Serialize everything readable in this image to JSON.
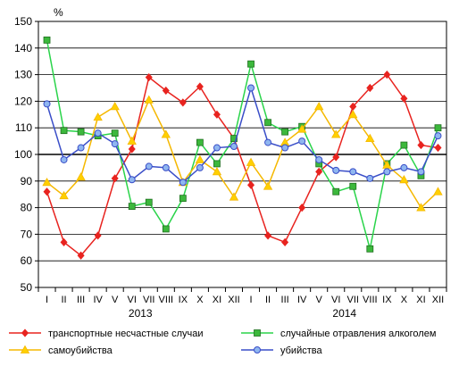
{
  "chart_data": {
    "type": "line",
    "unit_label": "%",
    "ylim": [
      50,
      150
    ],
    "yticks": [
      50,
      60,
      70,
      80,
      90,
      100,
      110,
      120,
      130,
      140,
      150
    ],
    "reference_line": 100,
    "grid": true,
    "categories": [
      "I",
      "II",
      "III",
      "IV",
      "V",
      "VI",
      "VII",
      "VIII",
      "IX",
      "X",
      "XI",
      "XII",
      "I",
      "II",
      "III",
      "IV",
      "V",
      "VI",
      "VII",
      "VIII",
      "IX",
      "X",
      "XI",
      "XII"
    ],
    "years": [
      {
        "label": "2013",
        "from": 0,
        "to": 11
      },
      {
        "label": "2014",
        "from": 12,
        "to": 23
      }
    ],
    "legend_position": "bottom",
    "series": [
      {
        "name": "транспортные несчастные случаи",
        "color": "#e8231f",
        "marker_fill": "#e8231f",
        "marker": "diamond",
        "values": [
          86,
          67,
          62,
          69.5,
          91,
          102,
          129,
          124,
          119.5,
          125.5,
          115,
          106,
          88.5,
          69.5,
          67,
          80,
          93.5,
          99,
          118,
          125,
          130,
          121,
          103.5,
          102.5
        ]
      },
      {
        "name": "случайные отравления алкоголем",
        "color": "#2ad44a",
        "marker_fill": "#3cb83c",
        "marker": "square",
        "values": [
          143,
          109,
          108.5,
          107,
          108,
          80.5,
          82,
          72,
          83.5,
          104.5,
          96.5,
          106,
          134,
          112,
          108.5,
          110.5,
          96.5,
          86,
          88,
          64.5,
          96.5,
          103.5,
          92,
          110
        ]
      },
      {
        "name": "самоубийства",
        "color": "#f5b800",
        "marker_fill": "#ffd000",
        "marker": "triangle",
        "values": [
          89.5,
          84.5,
          91.5,
          114,
          118,
          105,
          120.5,
          107.5,
          89.5,
          98,
          93.5,
          84,
          97,
          88,
          104.5,
          109.5,
          118,
          107.5,
          115,
          106,
          96,
          90.5,
          80,
          86
        ]
      },
      {
        "name": "убийства",
        "color": "#3a4ec8",
        "marker_fill": "#8fb6f0",
        "marker": "circle",
        "values": [
          119,
          98,
          102.5,
          108,
          104,
          90.5,
          95.5,
          95,
          89.5,
          95,
          102.5,
          103,
          125,
          104.5,
          102.5,
          105,
          98,
          94,
          93.5,
          91,
          93.5,
          95,
          93.5,
          107
        ]
      }
    ]
  }
}
